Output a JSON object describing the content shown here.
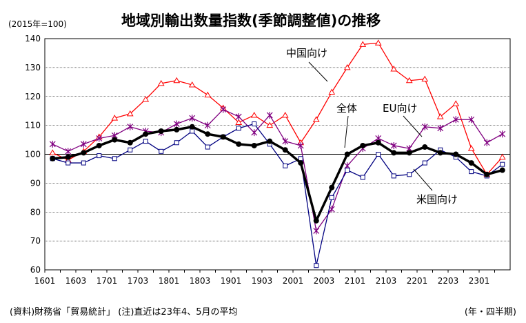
{
  "chart_data": {
    "type": "line",
    "title": "地域別輸出数量指数(季節調整値)の推移",
    "unit_label": "(2015年=100)",
    "footer_source": "(資料)財務省「貿易統計」 (注)直近は23年4、5月の平均",
    "xlabel": "(年・四半期)",
    "ylim": [
      60,
      140
    ],
    "yticks": [
      60,
      70,
      80,
      90,
      100,
      110,
      120,
      130,
      140
    ],
    "grid": true,
    "x": [
      "1601",
      "1602",
      "1603",
      "1604",
      "1701",
      "1702",
      "1703",
      "1704",
      "1801",
      "1802",
      "1803",
      "1804",
      "1901",
      "1902",
      "1903",
      "1904",
      "2001",
      "2002",
      "2003",
      "2004",
      "2101",
      "2102",
      "2103",
      "2104",
      "2201",
      "2202",
      "2203",
      "2204",
      "2301",
      "2302"
    ],
    "xtick_labels": [
      "1601",
      "1603",
      "1701",
      "1703",
      "1801",
      "1803",
      "1901",
      "1903",
      "2001",
      "2003",
      "2101",
      "2103",
      "2201",
      "2203",
      "2301"
    ],
    "series": [
      {
        "name": "中国向け",
        "color": "#ff0000",
        "marker": "triangle",
        "values": [
          100.5,
          98,
          101,
          106,
          112.5,
          114,
          119,
          124.5,
          125.5,
          124,
          120.5,
          116,
          111,
          113.5,
          110,
          113.5,
          104,
          112,
          121.5,
          130,
          138,
          138.5,
          129.5,
          125.5,
          126,
          113,
          117.5,
          102,
          93,
          99
        ]
      },
      {
        "name": "EU向け",
        "color": "#800080",
        "marker": "star",
        "values": [
          103.5,
          101,
          103.5,
          105.5,
          106.5,
          109.5,
          108,
          107.5,
          110.5,
          112.5,
          110,
          115.5,
          113,
          107.5,
          113.5,
          104.5,
          103,
          73.5,
          81,
          96,
          102,
          105.5,
          103,
          102,
          109.5,
          109,
          112,
          112,
          104,
          107
        ]
      },
      {
        "name": "米国向け",
        "color": "#000080",
        "marker": "square",
        "values": [
          98.5,
          97,
          97,
          99.5,
          98.5,
          101.5,
          104.5,
          101,
          104,
          108,
          102.5,
          106,
          109,
          110.5,
          103.5,
          96,
          98.5,
          61.5,
          85,
          94.5,
          92,
          100,
          92.5,
          93,
          97,
          101.5,
          99,
          94,
          92.5,
          96.5
        ]
      },
      {
        "name": "全体",
        "color": "#000000",
        "marker": "circle",
        "values": [
          98.5,
          99,
          100.5,
          103,
          105,
          104,
          107,
          108,
          108.5,
          109.5,
          107,
          106,
          103.5,
          103,
          104.5,
          101.5,
          97,
          77,
          88.5,
          100,
          103,
          104,
          100.5,
          100.5,
          102.5,
          100.5,
          100,
          97,
          93,
          94.5
        ]
      }
    ],
    "annotations": [
      {
        "text": "中国向け"
      },
      {
        "text": "全体"
      },
      {
        "text": "EU向け"
      },
      {
        "text": "米国向け"
      }
    ]
  }
}
